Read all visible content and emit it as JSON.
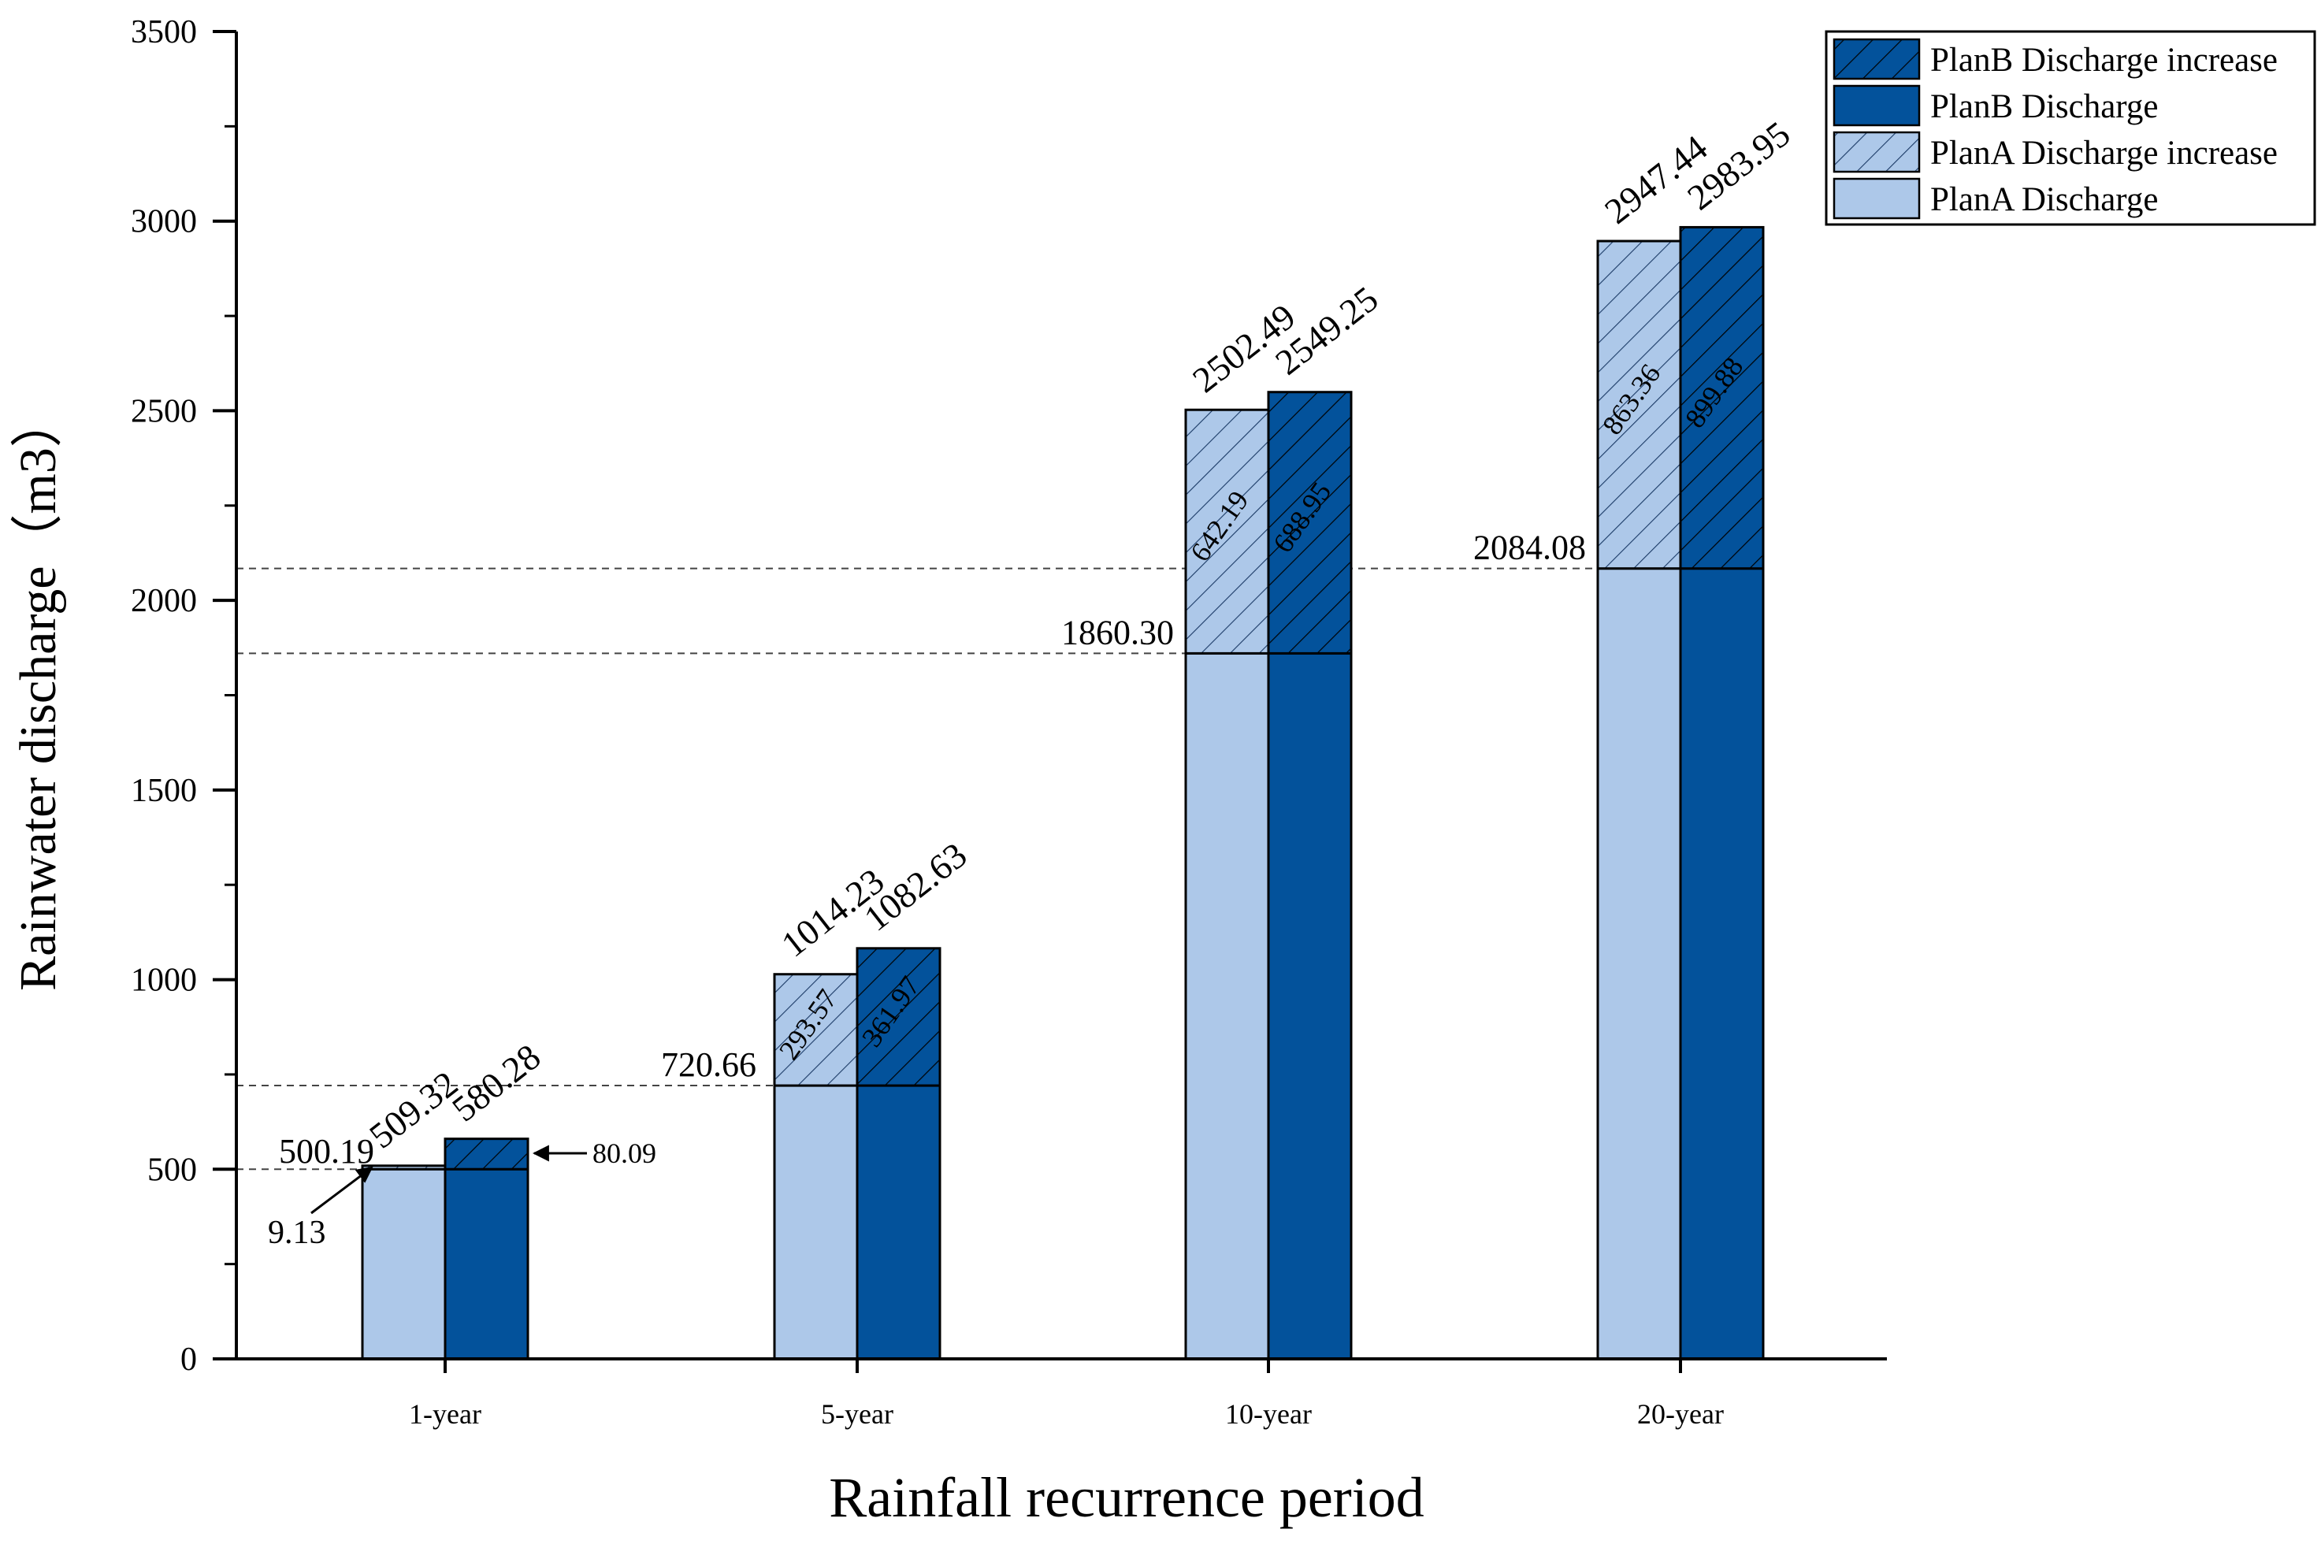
{
  "chart_data": {
    "type": "bar",
    "title": "",
    "xlabel": "Rainfall recurrence period",
    "ylabel": "Rainwater discharge（m3）",
    "ylim": [
      0,
      3500
    ],
    "yticks": [
      0,
      500,
      1000,
      1500,
      2000,
      2500,
      3000,
      3500
    ],
    "ytick_labels": [
      "0",
      "500",
      "1000",
      "1500",
      "2000",
      "2500",
      "3000",
      "3500"
    ],
    "categories": [
      "1-year",
      "5-year",
      "10-year",
      "20-year"
    ],
    "base": [
      500.19,
      720.66,
      1860.3,
      2084.08
    ],
    "base_labels": [
      "500.19",
      "720.66",
      "1860.30",
      "2084.08"
    ],
    "series": [
      {
        "name": "PlanA Discharge increase",
        "values": [
          9.13,
          293.57,
          642.19,
          863.36
        ],
        "value_labels": [
          "9.13",
          "293.57",
          "642.19",
          "863.36"
        ],
        "totals": [
          509.32,
          1014.23,
          2502.49,
          2947.44
        ],
        "total_labels": [
          "509.32",
          "1014.23",
          "2502.49",
          "2947.44"
        ]
      },
      {
        "name": "PlanB Discharge increase",
        "values": [
          80.09,
          361.97,
          688.95,
          899.88
        ],
        "value_labels": [
          "80.09",
          "361.97",
          "688.95",
          "899.88"
        ],
        "totals": [
          580.28,
          1082.63,
          2549.25,
          2983.95
        ],
        "total_labels": [
          "580.28",
          "1082.63",
          "2549.25",
          "2983.95"
        ]
      }
    ],
    "legend": {
      "position": "top-right",
      "entries": [
        {
          "label": "PlanB Discharge increase",
          "style": "planB-hatch"
        },
        {
          "label": "PlanB Discharge",
          "style": "planB-solid"
        },
        {
          "label": "PlanA Discharge increase",
          "style": "planA-hatch"
        },
        {
          "label": "PlanA Discharge",
          "style": "planA-solid"
        }
      ]
    },
    "colors": {
      "planA": "#adc8e9",
      "planB": "#03529b",
      "edge": "#000000"
    },
    "reference_lines": [
      500.19,
      720.66,
      1860.3,
      2084.08
    ]
  }
}
